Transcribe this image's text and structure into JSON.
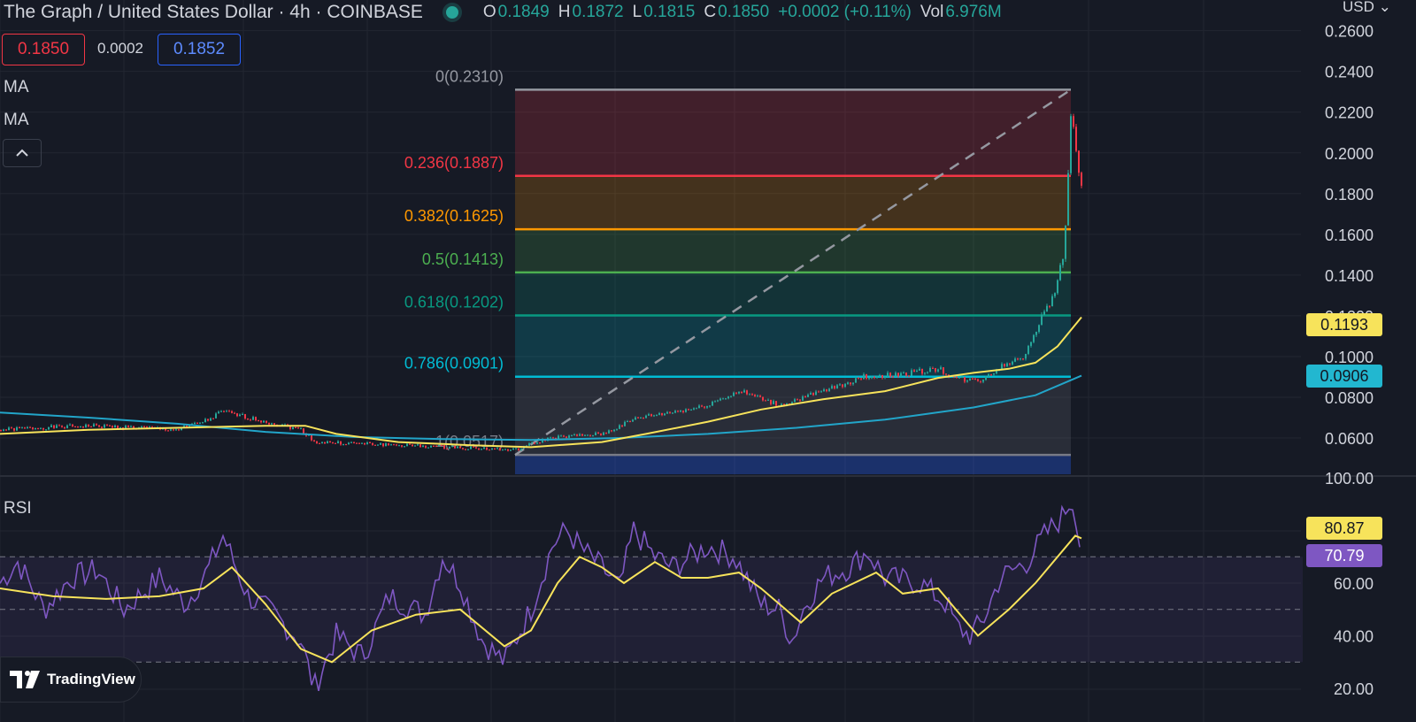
{
  "header": {
    "title": "The Graph / United States Dollar · 4h · COINBASE",
    "ohlc": [
      {
        "key": "O",
        "value": "0.1849"
      },
      {
        "key": "H",
        "value": "0.1872"
      },
      {
        "key": "L",
        "value": "0.1815"
      },
      {
        "key": "C",
        "value": "0.1850"
      }
    ],
    "change": "+0.0002 (+0.11%)",
    "volume_label": "Vol",
    "volume_value": "6.976M"
  },
  "trade": {
    "sell_price": "0.1850",
    "spread": "0.0002",
    "buy_price": "0.1852"
  },
  "indicators": {
    "ma1": "MA",
    "ma2": "MA",
    "rsi": "RSI",
    "collapse_icon": "chevron-up-icon"
  },
  "price_axis": {
    "currency": "USD",
    "ticks": [
      "0.2600",
      "0.2400",
      "0.2200",
      "0.2000",
      "0.1800",
      "0.1600",
      "0.1400",
      "0.1200",
      "0.1000",
      "0.0800",
      "0.0600"
    ]
  },
  "tags": {
    "ma1_value": "0.1193",
    "ma2_value": "0.0906",
    "rsi_value": "70.79",
    "rsi_ma_value": "80.87"
  },
  "rsi_axis": {
    "ticks": [
      "100.00",
      "60.00",
      "40.00",
      "20.00"
    ]
  },
  "fib": [
    {
      "label": "0(0.2310)",
      "price": 0.231,
      "color": "#9598a1"
    },
    {
      "label": "0.236(0.1887)",
      "price": 0.1887,
      "color": "#f23645"
    },
    {
      "label": "0.382(0.1625)",
      "price": 0.1625,
      "color": "#ff9800"
    },
    {
      "label": "0.5(0.1413)",
      "price": 0.1413,
      "color": "#4caf50"
    },
    {
      "label": "0.618(0.1202)",
      "price": 0.1202,
      "color": "#089981"
    },
    {
      "label": "0.786(0.0901)",
      "price": 0.0901,
      "color": "#00bcd4"
    },
    {
      "label": "1(0.0517)",
      "price": 0.0517,
      "color": "#787b86"
    }
  ],
  "colors": {
    "up": "#26a69a",
    "down": "#f23645",
    "ma_fast": "#f7e35b",
    "ma_slow": "#22a5c9",
    "rsi": "#7e57c2",
    "background": "#161a25"
  },
  "branding": {
    "logo_text": "TradingView",
    "logo_icon": "tradingview-logo-icon"
  }
}
